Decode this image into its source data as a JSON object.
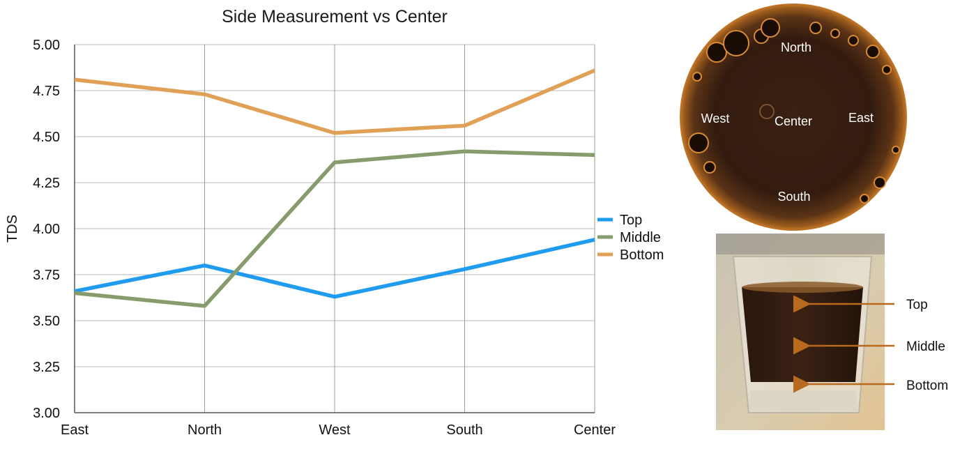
{
  "chart_data": {
    "type": "line",
    "title": "Side Measurement vs Center",
    "xlabel": "",
    "ylabel": "TDS",
    "categories": [
      "East",
      "North",
      "West",
      "South",
      "Center"
    ],
    "ylim": [
      3.0,
      5.0
    ],
    "yticks": [
      "3.00",
      "3.25",
      "3.50",
      "3.75",
      "4.00",
      "4.25",
      "4.50",
      "4.75",
      "5.00"
    ],
    "grid": true,
    "legend_position": "right",
    "series": [
      {
        "name": "Top",
        "color": "#1f9bf0",
        "values": [
          3.66,
          3.8,
          3.63,
          3.78,
          3.94
        ]
      },
      {
        "name": "Middle",
        "color": "#879c6c",
        "values": [
          3.65,
          3.58,
          4.36,
          4.42,
          4.4
        ]
      },
      {
        "name": "Bottom",
        "color": "#e0a157",
        "values": [
          4.81,
          4.73,
          4.52,
          4.56,
          4.86
        ]
      }
    ]
  },
  "cup_photo": {
    "labels": {
      "north": "North",
      "west": "West",
      "center": "Center",
      "east": "East",
      "south": "South"
    }
  },
  "glass_photo": {
    "labels": {
      "top": "Top",
      "middle": "Middle",
      "bottom": "Bottom"
    },
    "arrow_color": "#b86a1f"
  }
}
